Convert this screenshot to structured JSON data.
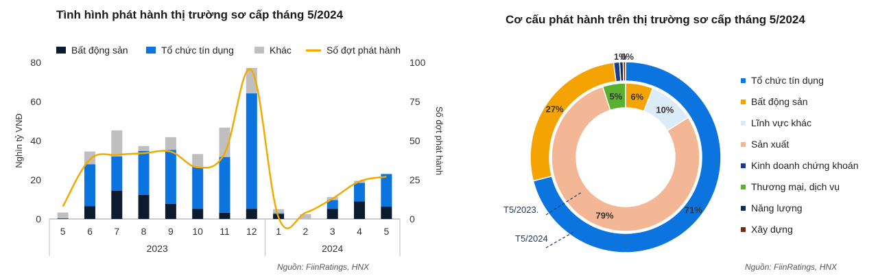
{
  "left_chart": {
    "title": "Tình hình phát hành thị trường sơ cấp tháng 5/2024",
    "source": "Nguồn: FiinRatings, HNX"
  },
  "right_chart": {
    "title": "Cơ cấu phát hành trên thị trường sơ cấp tháng 5/2024",
    "source": "Nguồn: FiinRatings, HNX",
    "ring_labels": {
      "outer": "T5/2024",
      "inner": "T5/2023."
    }
  },
  "colors": {
    "bds": "#0d1b2e",
    "tctd": "#0b74de",
    "khac": "#bfbfbf",
    "line": "#f2a900",
    "linh_vuc_khac": "#dcebf8",
    "san_xuat": "#f4b795",
    "kd_ck": "#1e3c8c",
    "tmdv": "#5ab02f",
    "nang_luong": "#0f2f55",
    "xay_dung": "#7a2a12"
  },
  "chart_data": [
    {
      "type": "bar",
      "stacked": true,
      "categories": [
        "5",
        "6",
        "7",
        "8",
        "9",
        "10",
        "11",
        "12",
        "1",
        "2",
        "3",
        "4",
        "5"
      ],
      "groups": [
        {
          "label": "2023",
          "from": 0,
          "to": 7
        },
        {
          "label": "2024",
          "from": 8,
          "to": 12
        }
      ],
      "series": [
        {
          "name": "Bất động sản",
          "color_key": "bds",
          "values": [
            0.3,
            6.5,
            14.5,
            12.3,
            7.8,
            5.2,
            3.2,
            5.2,
            2.5,
            0,
            5.2,
            9,
            6.3
          ]
        },
        {
          "name": "Tổ chức tín dụng",
          "color_key": "tctd",
          "values": [
            0,
            21.5,
            17.5,
            22.5,
            27.5,
            21.5,
            28.5,
            59,
            0.5,
            0,
            4.5,
            9.5,
            16.7
          ]
        },
        {
          "name": "Khác",
          "color_key": "khac",
          "values": [
            3,
            6.5,
            13.3,
            2.5,
            6.5,
            6.5,
            15,
            13,
            2,
            2.5,
            1.5,
            1,
            0
          ]
        },
        {
          "name": "Số đợt phát hành",
          "type": "line",
          "axis": "right",
          "color_key": "line",
          "values": [
            8,
            38,
            41,
            42,
            43,
            33,
            42,
            95,
            1,
            4,
            13,
            24,
            27
          ]
        }
      ],
      "y_left": {
        "label": "Nghìn tỷ VNĐ",
        "ticks": [
          0,
          20,
          40,
          60,
          80
        ],
        "lim": [
          0,
          80
        ]
      },
      "y_right": {
        "label": "Số đợt phát hành",
        "ticks": [
          0,
          25,
          50,
          75,
          100
        ],
        "lim": [
          0,
          100
        ]
      },
      "legend": "top"
    },
    {
      "type": "pie",
      "variant": "double-donut",
      "categories": [
        "Tổ chức tín dụng",
        "Bất động sản",
        "Lĩnh vực khác",
        "Sản xuất",
        "Kinh doanh chứng khoán",
        "Thương mại, dịch vụ",
        "Năng lượng",
        "Xây dựng"
      ],
      "category_colors": [
        "tctd",
        "khac_bds",
        "linh_vuc_khac",
        "san_xuat",
        "kd_ck",
        "tmdv",
        "nang_luong",
        "xay_dung"
      ],
      "series": [
        {
          "name": "T5/2024",
          "ring": "outer",
          "values": [
            71,
            27,
            0,
            0,
            1,
            0,
            0.6,
            0.4
          ],
          "labels": [
            "71%",
            "27%",
            "",
            "",
            "1%",
            "",
            "",
            "0%"
          ]
        },
        {
          "name": "T5/2023.",
          "ring": "inner",
          "values": [
            0,
            6,
            10,
            79,
            0,
            5,
            0,
            0
          ],
          "labels": [
            "",
            "6%",
            "10%",
            "79%",
            "",
            "5%",
            "",
            ""
          ]
        }
      ],
      "legend": "right"
    }
  ]
}
